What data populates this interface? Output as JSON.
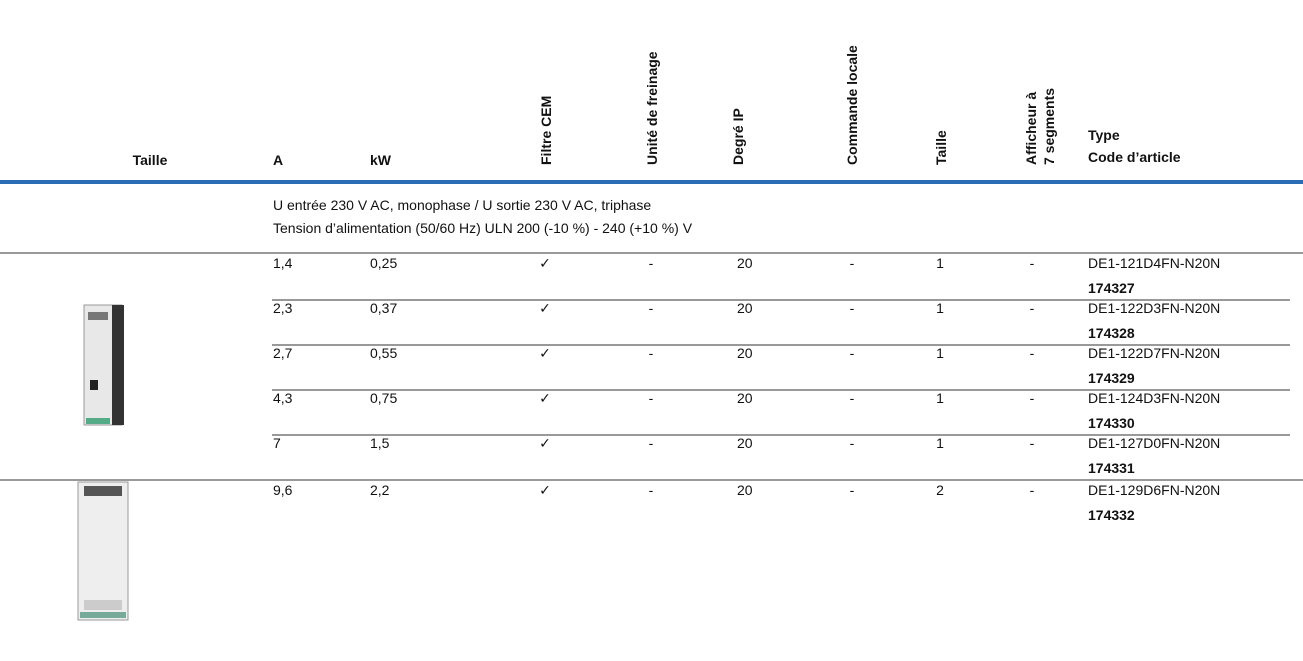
{
  "header": {
    "columns": [
      "Taille",
      "A",
      "kW",
      "Filtre CEM",
      "Unité de freinage",
      "Degré IP",
      "Commande locale",
      "Taille",
      [
        "Afficheur à",
        "7 segments"
      ],
      [
        "Type",
        "Code d’article"
      ]
    ]
  },
  "section": {
    "lines": [
      "U entrée 230 V AC, monophase / U sortie 230 V AC, triphase",
      "Tension d’alimentation (50/60 Hz) ULN 200 (-10 %) - 240 (+10 %) V"
    ]
  },
  "groups": [
    {
      "rows": [
        {
          "cells": [
            "1,4",
            "0,25",
            "✓",
            "-",
            "20",
            "-",
            "1",
            "-",
            "DE1-121D4FN-N20N"
          ],
          "code": "174327"
        },
        {
          "cells": [
            "2,3",
            "0,37",
            "✓",
            "-",
            "20",
            "-",
            "1",
            "-",
            "DE1-122D3FN-N20N"
          ],
          "code": "174328"
        },
        {
          "cells": [
            "2,7",
            "0,55",
            "✓",
            "-",
            "20",
            "-",
            "1",
            "-",
            "DE1-122D7FN-N20N"
          ],
          "code": "174329"
        },
        {
          "cells": [
            "4,3",
            "0,75",
            "✓",
            "-",
            "20",
            "-",
            "1",
            "-",
            "DE1-124D3FN-N20N"
          ],
          "code": "174330"
        },
        {
          "cells": [
            "7",
            "1,5",
            "✓",
            "-",
            "20",
            "-",
            "1",
            "-",
            "DE1-127D0FN-N20N"
          ],
          "code": "174331"
        }
      ]
    },
    {
      "rows": [
        {
          "cells": [
            "9,6",
            "2,2",
            "✓",
            "-",
            "20",
            "-",
            "2",
            "-",
            "DE1-129D6FN-N20N"
          ],
          "code": "174332"
        }
      ]
    }
  ]
}
